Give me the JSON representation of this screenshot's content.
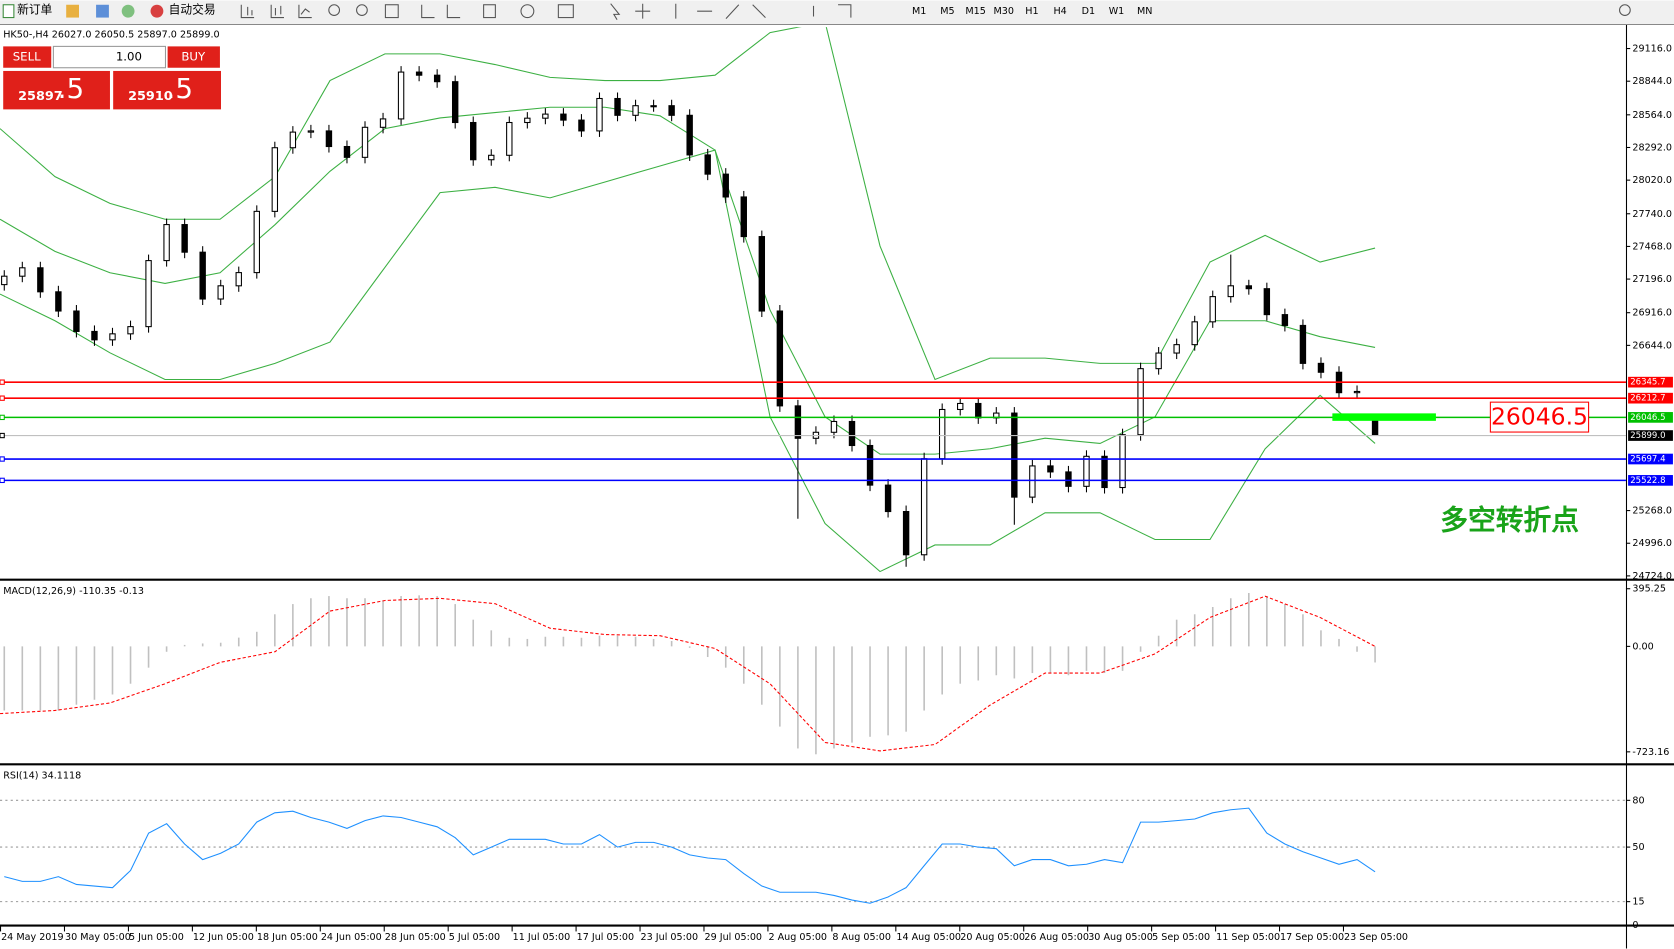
{
  "toolbar": {
    "new_order": "新订单",
    "auto_trading": "自动交易",
    "timeframes": [
      "M1",
      "M5",
      "M15",
      "M30",
      "H1",
      "H4",
      "D1",
      "W1",
      "MN"
    ]
  },
  "trade_panel": {
    "sell": "SELL",
    "buy": "BUY",
    "volume": "1.00",
    "sell_price": "25897",
    "sell_fraction": ".5",
    "buy_price": "25910",
    "buy_fraction": ".5"
  },
  "time_axis": {
    "labels": [
      "24 May 2019",
      "30 May 05:00",
      "5 Jun 05:00",
      "12 Jun 05:00",
      "18 Jun 05:00",
      "24 Jun 05:00",
      "28 Jun 05:00",
      "5 Jul 05:00",
      "11 Jul 05:00",
      "17 Jul 05:00",
      "23 Jul 05:00",
      "29 Jul 05:00",
      "2 Aug 05:00",
      "8 Aug 05:00",
      "14 Aug 05:00",
      "20 Aug 05:00",
      "26 Aug 05:00",
      "30 Aug 05:00",
      "5 Sep 05:00",
      "11 Sep 05:00",
      "17 Sep 05:00",
      "23 Sep 05:00"
    ]
  },
  "chart_data": [
    {
      "type": "candlestick",
      "title": "HK50-,H4 26027.0 26050.5 25897.0 25899.0",
      "ylim": [
        24706,
        29294
      ],
      "yticks": [
        {
          "value": 29116,
          "label": "29116.0"
        },
        {
          "value": 28844,
          "label": "28844.0"
        },
        {
          "value": 28564,
          "label": "28564.0"
        },
        {
          "value": 28292,
          "label": "28292.0"
        },
        {
          "value": 28020,
          "label": "28020.0"
        },
        {
          "value": 27740,
          "label": "27740.0"
        },
        {
          "value": 27468,
          "label": "27468.0"
        },
        {
          "value": 27196,
          "label": "27196.0"
        },
        {
          "value": 26916,
          "label": "26916.0"
        },
        {
          "value": 26644,
          "label": "26644.0"
        },
        {
          "value": 25268,
          "label": "25268.0"
        },
        {
          "value": 24996,
          "label": "24996.0"
        },
        {
          "value": 24724,
          "label": "24724.0"
        }
      ],
      "ohlc": [
        [
          27150,
          27270,
          27100,
          27220
        ],
        [
          27220,
          27340,
          27170,
          27290
        ],
        [
          27290,
          27340,
          27040,
          27090
        ],
        [
          27090,
          27140,
          26880,
          26930
        ],
        [
          26930,
          26980,
          26710,
          26760
        ],
        [
          26760,
          26810,
          26640,
          26690
        ],
        [
          26690,
          26790,
          26640,
          26740
        ],
        [
          26740,
          26850,
          26690,
          26800
        ],
        [
          26800,
          27400,
          26750,
          27350
        ],
        [
          27350,
          27700,
          27300,
          27650
        ],
        [
          27650,
          27700,
          27370,
          27420
        ],
        [
          27420,
          27470,
          26980,
          27030
        ],
        [
          27030,
          27190,
          26980,
          27140
        ],
        [
          27140,
          27300,
          27090,
          27250
        ],
        [
          27250,
          27810,
          27200,
          27760
        ],
        [
          27760,
          28340,
          27710,
          28290
        ],
        [
          28290,
          28470,
          28240,
          28420
        ],
        [
          28420,
          28480,
          28370,
          28430
        ],
        [
          28430,
          28480,
          28250,
          28300
        ],
        [
          28300,
          28350,
          28160,
          28210
        ],
        [
          28210,
          28510,
          28160,
          28460
        ],
        [
          28460,
          28580,
          28410,
          28530
        ],
        [
          28530,
          28970,
          28480,
          28920
        ],
        [
          28920,
          28970,
          28844,
          28894
        ],
        [
          28894,
          28944,
          28790,
          28840
        ],
        [
          28840,
          28890,
          28450,
          28500
        ],
        [
          28500,
          28550,
          28140,
          28190
        ],
        [
          28190,
          28277,
          28140,
          28227
        ],
        [
          28227,
          28550,
          28177,
          28500
        ],
        [
          28500,
          28586,
          28450,
          28536
        ],
        [
          28536,
          28620,
          28486,
          28570
        ],
        [
          28570,
          28620,
          28470,
          28520
        ],
        [
          28520,
          28570,
          28380,
          28430
        ],
        [
          28430,
          28750,
          28380,
          28700
        ],
        [
          28700,
          28750,
          28510,
          28560
        ],
        [
          28560,
          28690,
          28510,
          28640
        ],
        [
          28640,
          28690,
          28590,
          28640
        ],
        [
          28640,
          28690,
          28510,
          28560
        ],
        [
          28560,
          28610,
          28180,
          28230
        ],
        [
          28230,
          28280,
          28020,
          28070
        ],
        [
          28070,
          28120,
          27830,
          27880
        ],
        [
          27880,
          27930,
          27500,
          27550
        ],
        [
          27550,
          27600,
          26880,
          26930
        ],
        [
          26930,
          26980,
          26090,
          26140
        ],
        [
          26140,
          26190,
          25200,
          25870
        ],
        [
          25870,
          25970,
          25820,
          25920
        ],
        [
          25920,
          26060,
          25870,
          26010
        ],
        [
          26010,
          26060,
          25760,
          25810
        ],
        [
          25810,
          25860,
          25430,
          25480
        ],
        [
          25480,
          25530,
          25210,
          25260
        ],
        [
          25260,
          25310,
          24800,
          24900
        ],
        [
          24900,
          25750,
          24850,
          25700
        ],
        [
          25700,
          26160,
          25650,
          26110
        ],
        [
          26110,
          26210,
          26060,
          26160
        ],
        [
          26160,
          26210,
          25990,
          26040
        ],
        [
          26040,
          26130,
          25990,
          26080
        ],
        [
          26080,
          26130,
          25150,
          25380
        ],
        [
          25380,
          25690,
          25330,
          25640
        ],
        [
          25640,
          25690,
          25540,
          25590
        ],
        [
          25590,
          25640,
          25420,
          25470
        ],
        [
          25470,
          25770,
          25420,
          25720
        ],
        [
          25720,
          25770,
          25410,
          25460
        ],
        [
          25460,
          25950,
          25410,
          25900
        ],
        [
          25900,
          26500,
          25850,
          26450
        ],
        [
          26450,
          26630,
          26400,
          26580
        ],
        [
          26580,
          26700,
          26530,
          26650
        ],
        [
          26650,
          26890,
          26600,
          26840
        ],
        [
          26840,
          27100,
          26790,
          27050
        ],
        [
          27050,
          27400,
          27000,
          27140
        ],
        [
          27140,
          27190,
          27066,
          27116
        ],
        [
          27116,
          27166,
          26850,
          26900
        ],
        [
          26900,
          26950,
          26760,
          26810
        ],
        [
          26810,
          26860,
          26444,
          26494
        ],
        [
          26494,
          26544,
          26370,
          26420
        ],
        [
          26420,
          26470,
          26200,
          26250
        ],
        [
          26250,
          26310,
          26200,
          26260
        ],
        [
          26027.0,
          26050.5,
          25897.0,
          25899.0
        ]
      ],
      "bands": [
        {
          "color": "#3cb043",
          "values": [
            28449,
            28049,
            27827,
            27694,
            27694,
            28049,
            28849,
            29072,
            29072,
            28983,
            28876,
            28849,
            28849,
            28894,
            29249,
            29338,
            27471,
            26360,
            26538,
            26538,
            26494,
            26494,
            27338,
            27560,
            27338,
            27454
          ]
        },
        {
          "color": "#3cb043",
          "values": [
            27694,
            27427,
            27249,
            27160,
            27249,
            27649,
            28094,
            28449,
            28538,
            28583,
            28627,
            28627,
            28556,
            28271,
            26938,
            26049,
            25738,
            25738,
            25783,
            25871,
            25827,
            26049,
            26849,
            26849,
            26716,
            26627
          ]
        },
        {
          "color": "#3cb043",
          "values": [
            27071,
            26849,
            26582,
            26360,
            26360,
            26494,
            26671,
            27294,
            27916,
            27960,
            27872,
            28005,
            28138,
            28271,
            26049,
            25160,
            24760,
            24982,
            24982,
            25249,
            25249,
            25027,
            25027,
            25782,
            26227,
            25827
          ]
        }
      ],
      "levels": [
        {
          "value": 26345.7,
          "color": "#ff0000"
        },
        {
          "value": 26212.7,
          "color": "#ff0000"
        },
        {
          "value": 26046.5,
          "color": "#00c000"
        },
        {
          "value": 25697.4,
          "color": "#0000ff"
        },
        {
          "value": 25522.8,
          "color": "#0000ff"
        },
        {
          "value": 25899,
          "label": "25899.0",
          "color": "#000000"
        }
      ],
      "annotations": [
        {
          "value": 26046.5,
          "color": "#ff0000"
        },
        {
          "text": "多空转折点",
          "color": "#19a319"
        }
      ]
    },
    {
      "type": "macd",
      "title": "MACD(12,26,9) -110.35 -0.13",
      "ylim": [
        -798,
        424.5
      ],
      "yticks": [
        395.25,
        {
          "value": 0,
          "label": "0.00"
        },
        -723.16
      ],
      "series": [
        {
          "color": "#c0c0c0",
          "values": [
            -440,
            -440,
            -440,
            -440,
            -400,
            -366,
            -330,
            -256,
            -146,
            -37,
            10,
            20,
            25,
            60,
            100,
            220,
            290,
            330,
            345,
            330,
            330,
            315,
            345,
            350,
            345,
            290,
            183,
            110,
            59,
            51,
            66,
            66,
            59,
            73,
            73,
            66,
            51,
            37,
            -10,
            -73,
            -146,
            -256,
            -400,
            -550,
            -700,
            -740,
            -700,
            -660,
            -620,
            -610,
            -585,
            -440,
            -330,
            -256,
            -234,
            -198,
            -220,
            -183,
            -183,
            -198,
            -168,
            -183,
            -168,
            -37,
            73,
            183,
            220,
            270,
            330,
            366,
            345,
            290,
            220,
            110,
            51,
            -37,
            -110.35
          ]
        },
        {
          "color": "#ff0000",
          "values": [
            -461,
            -439,
            -388,
            -256,
            -110,
            -37,
            242,
            315,
            329,
            293,
            124,
            81,
            73,
            -15,
            -256,
            -659,
            -717,
            -673,
            -403,
            -183,
            -183,
            -51,
            198,
            344,
            198,
            -0.13
          ]
        }
      ]
    },
    {
      "type": "line",
      "title": "RSI(14) 34.1118",
      "ylim": [
        0,
        100
      ],
      "yticks": [
        0,
        15,
        50,
        80
      ],
      "color": "#1e90ff",
      "values": [
        31,
        28,
        28,
        31,
        26,
        25,
        24,
        35,
        59,
        65,
        52,
        42,
        46,
        52,
        66,
        72,
        73,
        69,
        66,
        62,
        67,
        70,
        69,
        66,
        63,
        56,
        45,
        50,
        55,
        55,
        55,
        52,
        52,
        58,
        50,
        53,
        53,
        50,
        45,
        43,
        42,
        33,
        25,
        21,
        21,
        21,
        19,
        16,
        14,
        18,
        24,
        38,
        52,
        52,
        50,
        49,
        38,
        42,
        42,
        38,
        39,
        42,
        40,
        66,
        66,
        67,
        68,
        72,
        74,
        75,
        59,
        52,
        47,
        43,
        39,
        42,
        34.1118
      ]
    }
  ]
}
